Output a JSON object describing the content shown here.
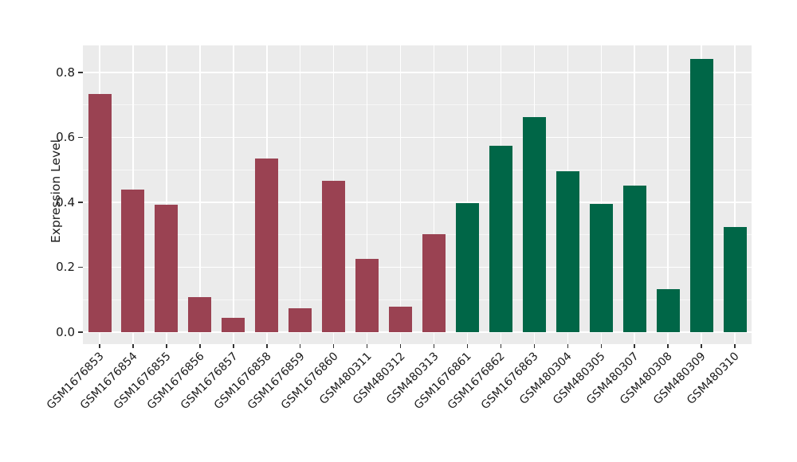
{
  "chart_data": {
    "type": "bar",
    "title": "",
    "xlabel": "",
    "ylabel": "Expression Level",
    "categories": [
      "GSM1676853",
      "GSM1676854",
      "GSM1676855",
      "GSM1676856",
      "GSM1676857",
      "GSM1676858",
      "GSM1676859",
      "GSM1676860",
      "GSM480311",
      "GSM480312",
      "GSM480313",
      "GSM1676861",
      "GSM1676862",
      "GSM1676863",
      "GSM480304",
      "GSM480305",
      "GSM480307",
      "GSM480308",
      "GSM480309",
      "GSM480310"
    ],
    "values": [
      0.734,
      0.438,
      0.392,
      0.108,
      0.045,
      0.535,
      0.073,
      0.466,
      0.226,
      0.079,
      0.303,
      0.397,
      0.575,
      0.663,
      0.496,
      0.394,
      0.451,
      0.132,
      0.842,
      0.323
    ],
    "bar_groups": [
      "red",
      "red",
      "red",
      "red",
      "red",
      "red",
      "red",
      "red",
      "red",
      "red",
      "red",
      "green",
      "green",
      "green",
      "green",
      "green",
      "green",
      "green",
      "green",
      "green"
    ],
    "palette": {
      "red": "#9A4252",
      "green": "#006647"
    },
    "yticks": {
      "values": [
        0.0,
        0.2,
        0.4,
        0.6,
        0.8
      ],
      "labels": [
        "0.0",
        "0.2",
        "0.4",
        "0.6",
        "0.8"
      ]
    },
    "minor_yticks": [
      0.1,
      0.3,
      0.5,
      0.7
    ],
    "ylim": [
      -0.037,
      0.883
    ],
    "grid": "horizontal major+minor white, vertical white at category centers",
    "legend": false,
    "panel_bg": "#EBEBEB",
    "grid_color": "#FFFFFF",
    "text_color": "#1A1A1A",
    "tick_color": "#333333"
  }
}
